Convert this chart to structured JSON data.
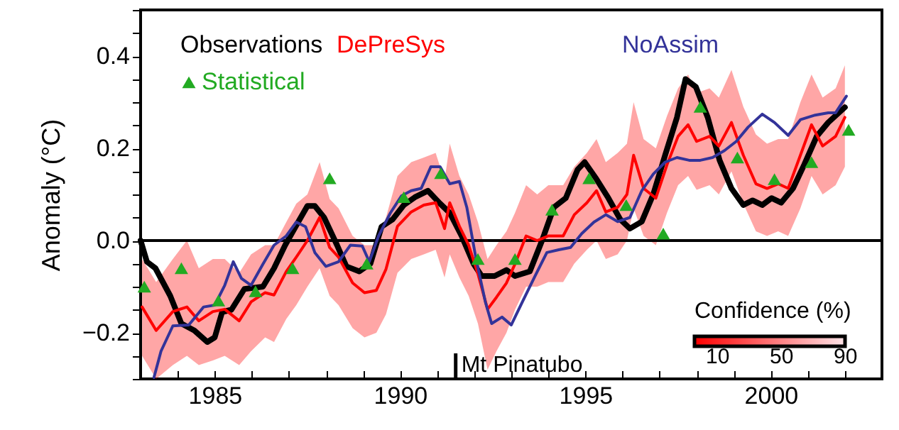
{
  "chart_data": {
    "type": "line",
    "ylabel": "Anomaly (°C)",
    "legend": "top left",
    "grid": false,
    "line_style": "solid",
    "xlim": [
      1983,
      2003
    ],
    "xticks": [
      {
        "value": 1983,
        "label": null
      },
      {
        "value": 1984,
        "label": null
      },
      1985,
      {
        "value": 1986,
        "label": null
      },
      {
        "value": 1987,
        "label": null
      },
      {
        "value": 1988,
        "label": null
      },
      {
        "value": 1989,
        "label": null
      },
      1990,
      {
        "value": 1991,
        "label": null
      },
      {
        "value": 1992,
        "label": null
      },
      {
        "value": 1993,
        "label": null
      },
      {
        "value": 1994,
        "label": null
      },
      1995,
      {
        "value": 1996,
        "label": null
      },
      {
        "value": 1997,
        "label": null
      },
      {
        "value": 1998,
        "label": null
      },
      {
        "value": 1999,
        "label": null
      },
      2000,
      {
        "value": 2001,
        "label": null
      },
      {
        "value": 2002,
        "label": null
      },
      {
        "value": 2003,
        "label": null
      }
    ],
    "ylim": [
      -0.3,
      0.5
    ],
    "yticks": [
      {
        "value": -0.3,
        "label": null
      },
      {
        "value": -0.25,
        "label": null
      },
      {
        "value": -0.2,
        "label": "−0.2"
      },
      {
        "value": -0.15,
        "label": null
      },
      {
        "value": -0.1,
        "label": null
      },
      {
        "value": -0.05,
        "label": null
      },
      {
        "value": 0,
        "label": "0.0"
      },
      {
        "value": 0.05,
        "label": null
      },
      {
        "value": 0.1,
        "label": null
      },
      {
        "value": 0.15,
        "label": null
      },
      0.2,
      {
        "value": 0.25,
        "label": null
      },
      {
        "value": 0.3,
        "label": null
      },
      {
        "value": 0.35,
        "label": null
      },
      0.4,
      {
        "value": 0.45,
        "label": null
      },
      {
        "value": 0.5,
        "label": null
      }
    ],
    "annotations": [
      "Confidence (%)",
      "10",
      "50",
      "90"
    ],
    "ref_lines": [
      {
        "axis": "y",
        "value": 0,
        "color": "#000000"
      },
      {
        "axis": "x",
        "value": 1991.5,
        "label": "Mt Pinatubo",
        "color": "#000000"
      }
    ],
    "series": [
      {
        "name": "Observations",
        "type": "line",
        "color": "#000000",
        "x": [
          1983.0,
          1983.17,
          1983.4,
          1983.8,
          1984.1,
          1984.45,
          1984.8,
          1985.0,
          1985.2,
          1985.45,
          1985.8,
          1986.3,
          1986.6,
          1986.9,
          1987.25,
          1987.5,
          1987.7,
          1987.95,
          1988.3,
          1988.55,
          1988.9,
          1989.2,
          1989.5,
          1989.8,
          1990.1,
          1990.4,
          1990.75,
          1991.08,
          1991.34,
          1991.66,
          1991.98,
          1992.2,
          1992.55,
          1992.87,
          1993.1,
          1993.5,
          1993.83,
          1994.15,
          1994.47,
          1994.79,
          1994.98,
          1995.3,
          1995.62,
          1995.94,
          1996.2,
          1996.52,
          1996.83,
          1997.15,
          1997.47,
          1997.7,
          1997.98,
          1998.3,
          1998.62,
          1998.94,
          1999.26,
          1999.51,
          1999.77,
          2000.02,
          2000.28,
          2000.6,
          2000.9,
          2001.24,
          2001.55,
          2002.0
        ],
        "values": [
          0.0,
          -0.046,
          -0.06,
          -0.12,
          -0.18,
          -0.195,
          -0.22,
          -0.21,
          -0.155,
          -0.15,
          -0.105,
          -0.1,
          -0.06,
          -0.01,
          0.04,
          0.075,
          0.075,
          0.05,
          -0.01,
          -0.056,
          -0.067,
          -0.05,
          0.03,
          0.046,
          0.077,
          0.094,
          0.108,
          0.08,
          0.06,
          0.01,
          -0.05,
          -0.077,
          -0.077,
          -0.064,
          -0.077,
          -0.067,
          0.0,
          0.072,
          0.092,
          0.154,
          0.17,
          0.133,
          0.092,
          0.046,
          0.026,
          0.041,
          0.1,
          0.185,
          0.267,
          0.35,
          0.333,
          0.267,
          0.174,
          0.113,
          0.077,
          0.087,
          0.077,
          0.092,
          0.082,
          0.113,
          0.164,
          0.226,
          0.256,
          0.289
        ]
      },
      {
        "name": "DePreSys",
        "type": "line",
        "color": "#ff0000",
        "x": [
          1983.04,
          1983.42,
          1983.87,
          1984.25,
          1984.57,
          1984.95,
          1985.27,
          1985.66,
          1985.98,
          1986.36,
          1986.6,
          1986.93,
          1987.2,
          1987.5,
          1987.83,
          1988.1,
          1988.34,
          1988.72,
          1989.04,
          1989.36,
          1989.62,
          1989.93,
          1990.3,
          1990.64,
          1990.96,
          1991.2,
          1991.34,
          1991.6,
          1991.85,
          1992.1,
          1992.36,
          1992.6,
          1992.87,
          1993.1,
          1993.4,
          1993.7,
          1994.0,
          1994.4,
          1994.7,
          1995.04,
          1995.3,
          1995.55,
          1995.87,
          1996.12,
          1996.3,
          1996.57,
          1996.9,
          1997.2,
          1997.5,
          1997.77,
          1998.0,
          1998.35,
          1998.6,
          1998.94,
          1999.26,
          1999.6,
          1999.9,
          2000.2,
          2000.47,
          2000.8,
          2001.1,
          2001.4,
          2001.75,
          2002.0
        ],
        "values": [
          -0.144,
          -0.195,
          -0.154,
          -0.144,
          -0.174,
          -0.154,
          -0.149,
          -0.174,
          -0.133,
          -0.113,
          -0.118,
          -0.067,
          -0.036,
          0.0,
          0.05,
          -0.015,
          -0.036,
          -0.092,
          -0.113,
          -0.108,
          -0.062,
          0.031,
          0.062,
          0.077,
          0.082,
          0.026,
          0.082,
          0.031,
          -0.01,
          -0.072,
          -0.149,
          -0.123,
          -0.092,
          -0.051,
          0.01,
          0.0,
          0.01,
          0.01,
          0.056,
          0.082,
          0.108,
          0.062,
          0.072,
          0.1,
          0.185,
          0.113,
          0.092,
          0.164,
          0.226,
          0.251,
          0.215,
          0.226,
          0.205,
          0.256,
          0.185,
          0.123,
          0.113,
          0.123,
          0.113,
          0.185,
          0.251,
          0.205,
          0.226,
          0.267
        ],
        "lower": [
          -0.25,
          -0.3,
          -0.27,
          -0.25,
          -0.27,
          -0.26,
          -0.25,
          -0.27,
          -0.24,
          -0.21,
          -0.22,
          -0.17,
          -0.14,
          -0.1,
          -0.06,
          -0.12,
          -0.14,
          -0.19,
          -0.21,
          -0.2,
          -0.16,
          -0.07,
          -0.04,
          -0.03,
          -0.02,
          -0.08,
          -0.03,
          -0.08,
          -0.12,
          -0.18,
          -0.28,
          -0.24,
          -0.2,
          -0.15,
          -0.1,
          -0.1,
          -0.09,
          -0.09,
          -0.05,
          -0.02,
          0.0,
          -0.04,
          -0.03,
          0.0,
          0.07,
          0.01,
          -0.01,
          0.06,
          0.12,
          0.14,
          0.11,
          0.12,
          0.1,
          0.15,
          0.08,
          0.02,
          0.01,
          0.02,
          0.01,
          0.07,
          0.14,
          0.1,
          0.12,
          0.16
        ],
        "upper": [
          -0.04,
          -0.09,
          -0.04,
          0.0,
          -0.06,
          -0.04,
          -0.04,
          -0.07,
          -0.03,
          -0.01,
          -0.01,
          0.04,
          0.08,
          0.1,
          0.17,
          0.09,
          0.07,
          0.01,
          -0.01,
          -0.01,
          0.05,
          0.14,
          0.17,
          0.18,
          0.19,
          0.13,
          0.21,
          0.14,
          0.1,
          0.04,
          -0.04,
          -0.01,
          0.02,
          0.06,
          0.12,
          0.1,
          0.12,
          0.12,
          0.16,
          0.19,
          0.22,
          0.17,
          0.19,
          0.21,
          0.3,
          0.22,
          0.2,
          0.27,
          0.33,
          0.36,
          0.32,
          0.33,
          0.31,
          0.37,
          0.29,
          0.23,
          0.21,
          0.22,
          0.22,
          0.3,
          0.36,
          0.31,
          0.33,
          0.38
        ]
      },
      {
        "name": "NoAssim",
        "type": "line",
        "color": "#333399",
        "x": [
          1983.36,
          1983.55,
          1983.87,
          1984.3,
          1984.7,
          1985.0,
          1985.27,
          1985.5,
          1985.72,
          1985.98,
          1986.3,
          1986.6,
          1986.93,
          1987.2,
          1987.45,
          1987.7,
          1988.0,
          1988.34,
          1988.66,
          1988.98,
          1989.17,
          1989.42,
          1989.74,
          1990.04,
          1990.3,
          1990.57,
          1990.83,
          1991.08,
          1991.34,
          1991.6,
          1991.8,
          1992.05,
          1992.3,
          1992.47,
          1992.75,
          1993.0,
          1993.3,
          1993.64,
          1993.96,
          1994.28,
          1994.6,
          1994.9,
          1995.23,
          1995.55,
          1995.87,
          1996.2,
          1996.52,
          1996.83,
          1997.15,
          1997.47,
          1997.8,
          1998.1,
          1998.43,
          1998.75,
          1999.07,
          1999.39,
          1999.77,
          2000.1,
          2000.47,
          2000.8,
          2001.2,
          2001.55,
          2001.75,
          2002.04
        ],
        "values": [
          -0.297,
          -0.24,
          -0.185,
          -0.183,
          -0.144,
          -0.14,
          -0.097,
          -0.046,
          -0.082,
          -0.097,
          -0.051,
          -0.01,
          0.01,
          0.04,
          0.03,
          -0.026,
          -0.056,
          -0.046,
          -0.01,
          -0.012,
          -0.046,
          0.01,
          0.06,
          0.097,
          0.108,
          0.113,
          0.16,
          0.16,
          0.123,
          0.128,
          0.072,
          -0.04,
          -0.133,
          -0.18,
          -0.166,
          -0.183,
          -0.133,
          -0.077,
          -0.026,
          -0.02,
          -0.015,
          0.015,
          0.04,
          0.056,
          0.041,
          0.05,
          0.108,
          0.144,
          0.17,
          0.18,
          0.174,
          0.174,
          0.18,
          0.195,
          0.215,
          0.246,
          0.274,
          0.256,
          0.228,
          0.262,
          0.272,
          0.277,
          0.277,
          0.313
        ]
      },
      {
        "name": "Statistical",
        "type": "scatter",
        "marker": "triangle",
        "color": "#22aa22",
        "x": [
          1983.1,
          1984.1,
          1985.1,
          1986.1,
          1987.1,
          1988.1,
          1989.1,
          1990.1,
          1991.1,
          1992.1,
          1993.1,
          1994.1,
          1995.1,
          1996.1,
          1997.1,
          1998.1,
          1999.1,
          2000.1,
          2001.1,
          2002.1
        ],
        "values": [
          -0.1,
          -0.06,
          -0.13,
          -0.11,
          -0.06,
          0.135,
          -0.05,
          0.094,
          0.146,
          -0.04,
          -0.04,
          0.067,
          0.135,
          0.077,
          0.015,
          0.29,
          0.18,
          0.133,
          0.17,
          0.24
        ]
      }
    ]
  }
}
